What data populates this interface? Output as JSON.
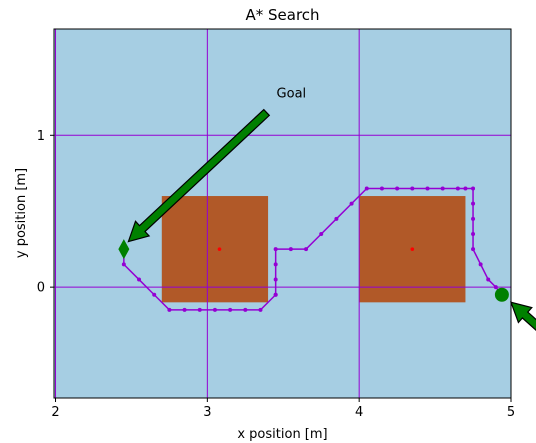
{
  "colors": {
    "background": "#a6cee3",
    "obstacle": "#b15928",
    "grid": "#9400d3",
    "path": "#9400d3",
    "marker": "#008000",
    "center_dot": "#ff0000",
    "axis": "#000000"
  },
  "chart_data": {
    "type": "line",
    "title": "A* Search",
    "xlabel": "x position [m]",
    "ylabel": "y position [m]",
    "xlim": [
      1.99,
      5.0
    ],
    "ylim": [
      -0.73,
      1.7
    ],
    "xticks": [
      2,
      3,
      4,
      5
    ],
    "yticks": [
      1,
      0
    ],
    "grid": true,
    "obstacles": [
      {
        "x": [
          2.7,
          3.4
        ],
        "y": [
          -0.1,
          0.6
        ],
        "center": [
          3.08,
          0.25
        ]
      },
      {
        "x": [
          4.0,
          4.7
        ],
        "y": [
          -0.1,
          0.6
        ],
        "center": [
          4.35,
          0.25
        ]
      }
    ],
    "series": [
      {
        "x": [
          4.94,
          4.9,
          4.85,
          4.8,
          4.75,
          4.75,
          4.75,
          4.75,
          4.75,
          4.7,
          4.65,
          4.55,
          4.45,
          4.35,
          4.25,
          4.15,
          4.05,
          3.95,
          3.85,
          3.75,
          3.65,
          3.55,
          3.45,
          3.45,
          3.45,
          3.45,
          3.45,
          3.35,
          3.25,
          3.15,
          3.05,
          2.95,
          2.85,
          2.75,
          2.65,
          2.55,
          2.45,
          2.45
        ],
        "y": [
          -0.05,
          0.0,
          0.05,
          0.15,
          0.25,
          0.35,
          0.45,
          0.55,
          0.65,
          0.65,
          0.65,
          0.65,
          0.65,
          0.65,
          0.65,
          0.65,
          0.65,
          0.55,
          0.45,
          0.35,
          0.25,
          0.25,
          0.25,
          0.15,
          0.05,
          -0.05,
          -0.05,
          -0.15,
          -0.15,
          -0.15,
          -0.15,
          -0.15,
          -0.15,
          -0.15,
          -0.05,
          0.05,
          0.15,
          0.25
        ]
      }
    ],
    "start": {
      "x": 4.94,
      "y": -0.05
    },
    "goal": {
      "x": 2.45,
      "y": 0.25
    },
    "annotations": [
      {
        "text": "Goal",
        "target": [
          2.48,
          0.3
        ],
        "from": [
          3.39,
          1.15
        ]
      },
      {
        "text": "",
        "target": [
          5.0,
          -0.1
        ],
        "from": [
          5.2,
          -0.28
        ]
      }
    ]
  }
}
